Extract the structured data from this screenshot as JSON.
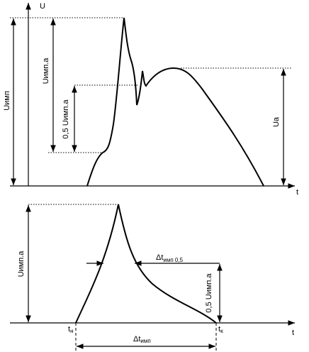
{
  "top": {
    "axis_y": "U",
    "axis_x": "t",
    "u_imp": "Uимп",
    "u_imp_a": "Uимп.а",
    "half_u_imp_a": "0,5 Uимп.а",
    "u_a": "Ua"
  },
  "bottom": {
    "u_imp_a": "Uимп.а",
    "dt_half": {
      "main": "Δt",
      "sub": "имп 0,5"
    },
    "half_u_imp_a": "0,5 Uимп.а",
    "t_start": {
      "main": "t",
      "sub": "н"
    },
    "t_end": {
      "main": "t",
      "sub": "к"
    },
    "dt_imp": {
      "main": "Δt",
      "sub": "имп"
    },
    "axis_x": "t"
  }
}
